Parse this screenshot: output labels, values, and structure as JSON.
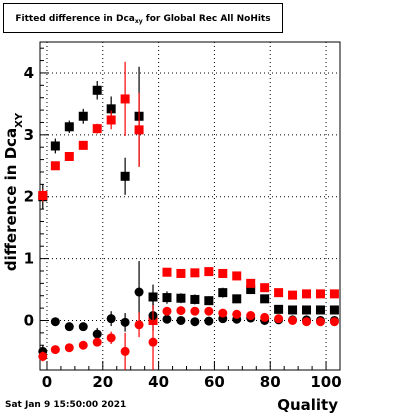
{
  "chart_data": {
    "type": "scatter",
    "title_prefix": "Fitted difference in Dca",
    "title_sub": "xy",
    "title_suffix": " for Global Rec All NoHits",
    "xlabel": "Quality",
    "ylabel_prefix": "difference in Dca",
    "ylabel_sub": "XY",
    "xlim": [
      -2.5,
      105
    ],
    "ylim": [
      -0.8,
      4.5
    ],
    "x_ticks": [
      0,
      20,
      40,
      60,
      80,
      100
    ],
    "y_ticks": [
      0,
      1,
      2,
      3,
      4
    ],
    "grid": true,
    "series": [
      {
        "color": "#000000",
        "marker": "square",
        "points": [
          [
            -1.5,
            2.0,
            0.2
          ],
          [
            3,
            2.82,
            0.12
          ],
          [
            8,
            3.13,
            0.1
          ],
          [
            13,
            3.3,
            0.12
          ],
          [
            18,
            3.72,
            0.15
          ],
          [
            23,
            3.42,
            0.2
          ],
          [
            28,
            2.33,
            0.3
          ],
          [
            33,
            3.3,
            0.8
          ],
          [
            38,
            0.38,
            0.2
          ],
          [
            43,
            0.37,
            0.1
          ],
          [
            48,
            0.36,
            0.08
          ],
          [
            53,
            0.34,
            0.08
          ],
          [
            58,
            0.32,
            0.07
          ],
          [
            63,
            0.45,
            0.08
          ],
          [
            68,
            0.35,
            0.07
          ],
          [
            73,
            0.5,
            0.06
          ],
          [
            78,
            0.35,
            0.05
          ],
          [
            83,
            0.18,
            0.05
          ],
          [
            88,
            0.17,
            0.04
          ],
          [
            93,
            0.17,
            0.04
          ],
          [
            98,
            0.17,
            0.04
          ],
          [
            103,
            0.17,
            0.04
          ]
        ]
      },
      {
        "color": "#ff0000",
        "marker": "square",
        "points": [
          [
            -1.5,
            2.02,
            0.1
          ],
          [
            3,
            2.5,
            0.05
          ],
          [
            8,
            2.65,
            0.06
          ],
          [
            13,
            2.83,
            0.06
          ],
          [
            18,
            3.1,
            0.08
          ],
          [
            23,
            3.24,
            0.15
          ],
          [
            28,
            3.58,
            0.6
          ],
          [
            33,
            3.08,
            0.6
          ],
          [
            38,
            0.0,
            0.0
          ],
          [
            43,
            0.78,
            0.07
          ],
          [
            48,
            0.76,
            0.05
          ],
          [
            53,
            0.77,
            0.04
          ],
          [
            58,
            0.79,
            0.04
          ],
          [
            63,
            0.76,
            0.04
          ],
          [
            68,
            0.72,
            0.04
          ],
          [
            73,
            0.6,
            0.04
          ],
          [
            78,
            0.53,
            0.04
          ],
          [
            83,
            0.45,
            0.03
          ],
          [
            88,
            0.41,
            0.03
          ],
          [
            93,
            0.43,
            0.03
          ],
          [
            98,
            0.43,
            0.03
          ],
          [
            103,
            0.43,
            0.03
          ]
        ]
      },
      {
        "color": "#000000",
        "marker": "circle",
        "points": [
          [
            -1.5,
            -0.5,
            0.1
          ],
          [
            3,
            -0.02,
            0.05
          ],
          [
            8,
            -0.1,
            0.05
          ],
          [
            13,
            -0.1,
            0.05
          ],
          [
            18,
            -0.22,
            0.1
          ],
          [
            23,
            0.03,
            0.12
          ],
          [
            28,
            -0.03,
            0.15
          ],
          [
            33,
            0.46,
            0.5
          ],
          [
            38,
            0.08,
            0.25
          ],
          [
            43,
            0.02,
            0.05
          ],
          [
            48,
            0.0,
            0.04
          ],
          [
            53,
            -0.02,
            0.04
          ],
          [
            58,
            -0.01,
            0.04
          ],
          [
            63,
            0.03,
            0.03
          ],
          [
            68,
            0.02,
            0.03
          ],
          [
            73,
            0.04,
            0.03
          ],
          [
            78,
            0.0,
            0.03
          ],
          [
            83,
            0.01,
            0.02
          ],
          [
            88,
            0.01,
            0.02
          ],
          [
            93,
            0.01,
            0.02
          ],
          [
            98,
            0.0,
            0.02
          ],
          [
            103,
            0.0,
            0.02
          ]
        ]
      },
      {
        "color": "#ff0000",
        "marker": "circle",
        "points": [
          [
            -1.5,
            -0.58,
            0.08
          ],
          [
            3,
            -0.47,
            0.04
          ],
          [
            8,
            -0.44,
            0.04
          ],
          [
            13,
            -0.4,
            0.04
          ],
          [
            18,
            -0.35,
            0.05
          ],
          [
            23,
            -0.28,
            0.1
          ],
          [
            28,
            -0.5,
            0.3
          ],
          [
            33,
            -0.07,
            0.2
          ],
          [
            38,
            -0.35,
            0.6
          ],
          [
            43,
            0.15,
            0.05
          ],
          [
            48,
            0.16,
            0.04
          ],
          [
            53,
            0.15,
            0.04
          ],
          [
            58,
            0.15,
            0.04
          ],
          [
            63,
            0.12,
            0.03
          ],
          [
            68,
            0.1,
            0.03
          ],
          [
            73,
            0.08,
            0.03
          ],
          [
            78,
            0.05,
            0.03
          ],
          [
            83,
            0.03,
            0.02
          ],
          [
            88,
            0.0,
            0.02
          ],
          [
            93,
            -0.02,
            0.02
          ],
          [
            98,
            -0.02,
            0.02
          ],
          [
            103,
            -0.02,
            0.02
          ]
        ]
      }
    ]
  },
  "footer": {
    "timestamp": "Sat Jan  9 15:50:00 2021"
  }
}
